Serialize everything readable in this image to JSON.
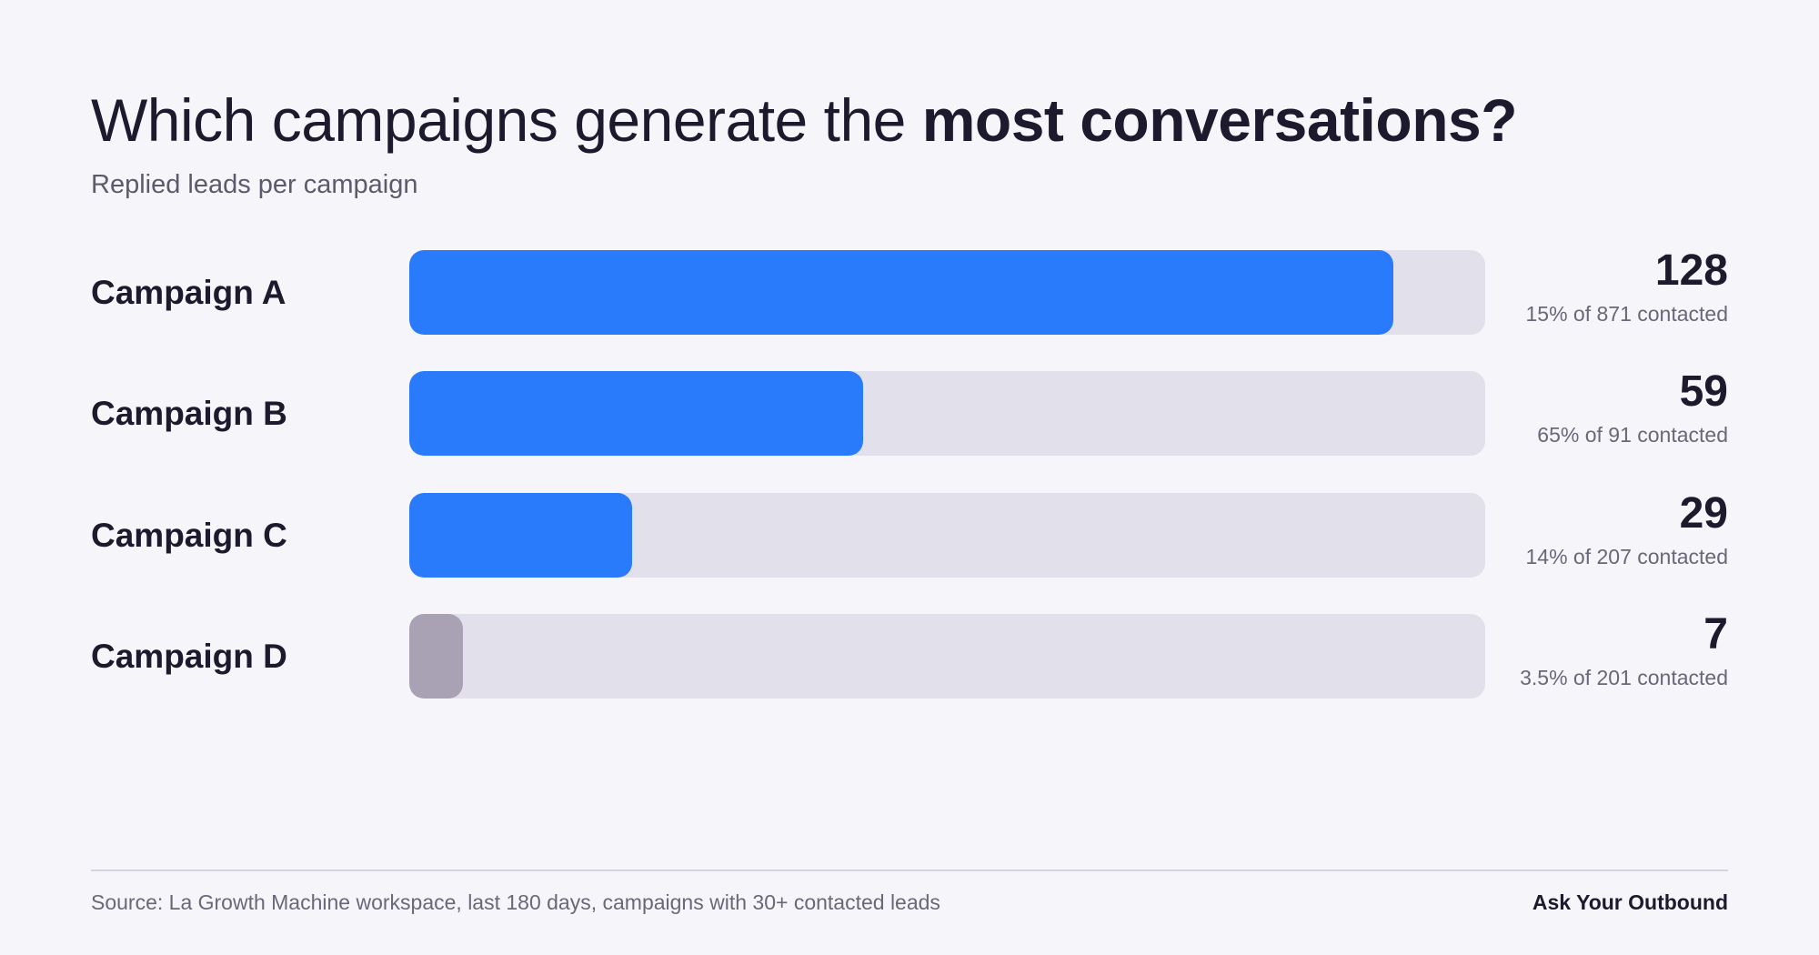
{
  "title": {
    "light": "Which campaigns generate the ",
    "bold": "most conversations?"
  },
  "subtitle": "Replied leads per campaign",
  "colors": {
    "accent": "#2a7bfc",
    "muted_bar": "#a8a2b4",
    "track": "#e2e0ea",
    "background": "#f5f5fa",
    "text": "#1e1a2e"
  },
  "chart_data": {
    "type": "bar",
    "orientation": "horizontal",
    "title": "Which campaigns generate the most conversations?",
    "subtitle": "Replied leads per campaign",
    "categories": [
      "Campaign A",
      "Campaign B",
      "Campaign C",
      "Campaign D"
    ],
    "values": [
      128,
      59,
      29,
      7
    ],
    "xlim": [
      0,
      140
    ],
    "grid": false,
    "rows": [
      {
        "label": "Campaign A",
        "value": "128",
        "note": "15% of 871 contacted",
        "color": "#2a7bfc"
      },
      {
        "label": "Campaign B",
        "value": "59",
        "note": "65% of 91 contacted",
        "color": "#2a7bfc"
      },
      {
        "label": "Campaign C",
        "value": "29",
        "note": "14% of 207 contacted",
        "color": "#2a7bfc"
      },
      {
        "label": "Campaign D",
        "value": "7",
        "note": "3.5% of 201 contacted",
        "color": "#a8a2b4"
      }
    ]
  },
  "footer": {
    "source": "Source: La Growth Machine workspace, last 180 days, campaigns with 30+ contacted leads",
    "brand": "Ask Your Outbound"
  }
}
